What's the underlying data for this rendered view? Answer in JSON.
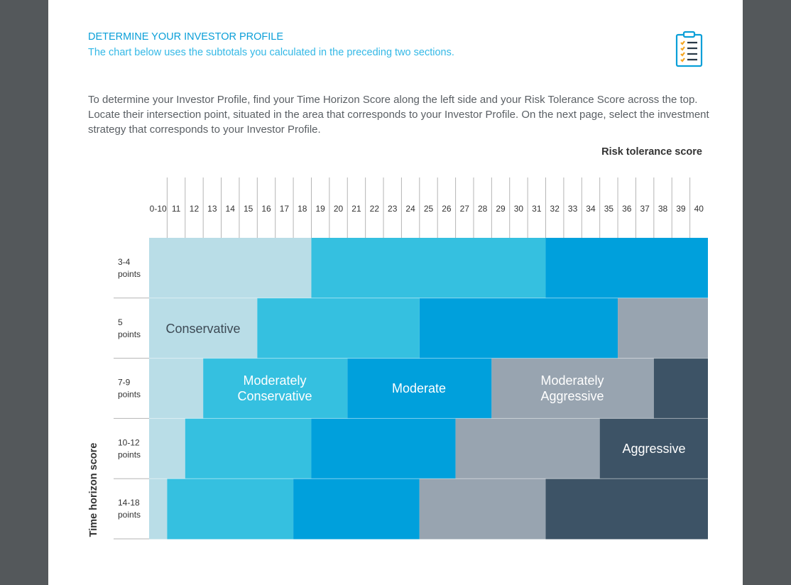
{
  "header": {
    "title": "DETERMINE YOUR INVESTOR PROFILE",
    "subtitle": "The chart below uses the subtotals you calculated in the preceding two sections."
  },
  "intro": "To determine your Investor Profile, find your Time Horizon Score along the left side and your Risk Tolerance Score across the top. Locate their intersection point, situated in the area that corresponds to your Investor Profile. On the next page, select the investment strategy that corresponds to your Investor Profile.",
  "grid": {
    "column_axis_label": "Risk tolerance score",
    "row_axis_label": "Time horizon score",
    "columns": [
      "0-10",
      "11",
      "12",
      "13",
      "14",
      "15",
      "16",
      "17",
      "18",
      "19",
      "20",
      "21",
      "22",
      "23",
      "24",
      "25",
      "26",
      "27",
      "28",
      "29",
      "30",
      "31",
      "32",
      "33",
      "34",
      "35",
      "36",
      "37",
      "38",
      "39",
      "40"
    ],
    "rows": [
      {
        "score": "3-4",
        "unit": "points"
      },
      {
        "score": "5",
        "unit": "points"
      },
      {
        "score": "7-9",
        "unit": "points"
      },
      {
        "score": "10-12",
        "unit": "points"
      },
      {
        "score": "14-18",
        "unit": "points"
      }
    ],
    "profiles": [
      {
        "name": "Conservative",
        "color": "#b9dde7"
      },
      {
        "name": "Moderately Conservative",
        "lines": [
          "Moderately",
          "Conservative"
        ],
        "color": "#35c0e0"
      },
      {
        "name": "Moderate",
        "color": "#00a0dc"
      },
      {
        "name": "Moderately Aggressive",
        "lines": [
          "Moderately",
          "Aggressive"
        ],
        "color": "#98a4b0"
      },
      {
        "name": "Aggressive",
        "color": "#3d5366"
      }
    ]
  }
}
